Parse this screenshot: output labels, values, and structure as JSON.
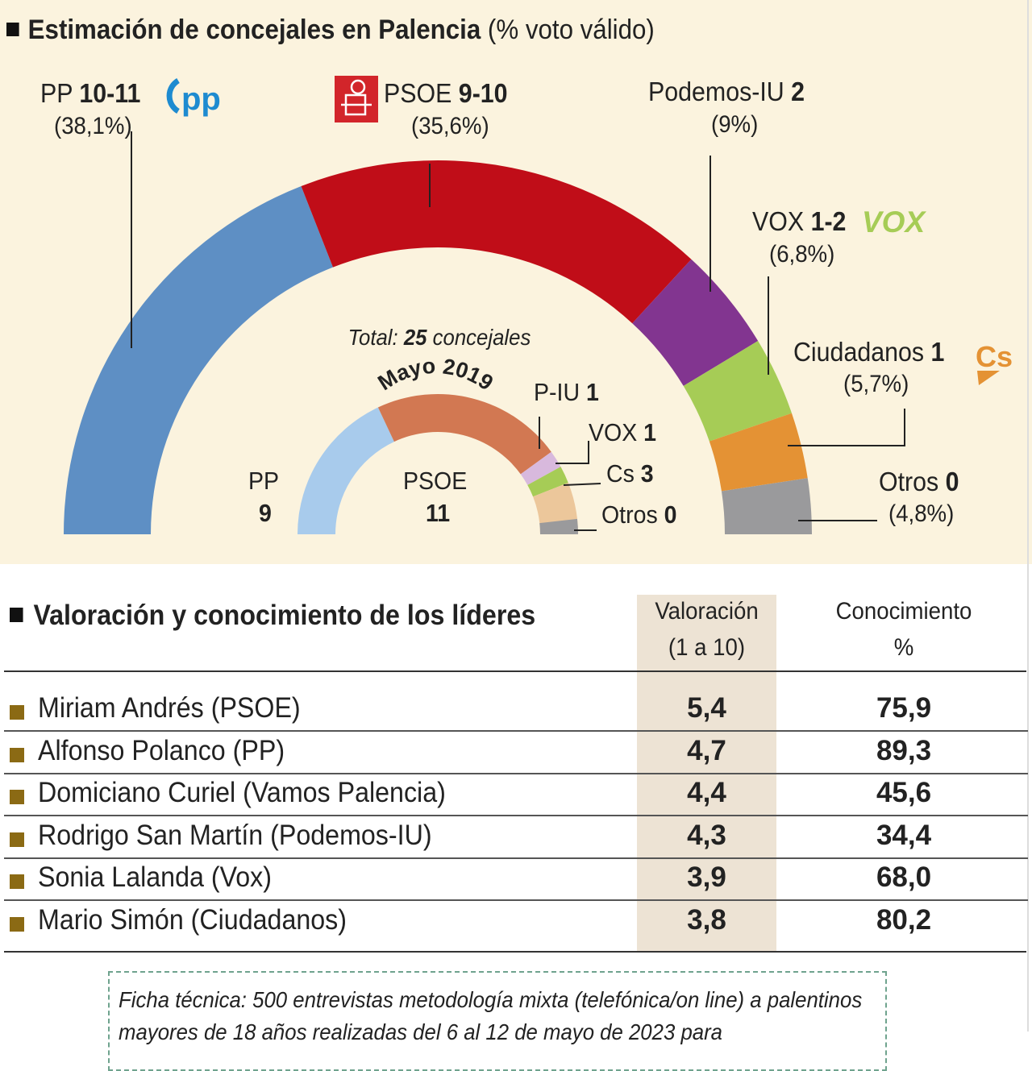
{
  "header": {
    "title": "Estimación de concejales en Palencia",
    "subtitle": "(% voto válido)"
  },
  "chart_data": [
    {
      "type": "pie",
      "title": "Estimación de concejales en Palencia",
      "subtitle": "(% voto válido)",
      "total_label": "Total:",
      "total_value": "25",
      "total_unit": "concejales",
      "series": [
        {
          "name": "PP",
          "seats": "10-11",
          "pct_label": "(38,1%)",
          "value": 38.1,
          "color": "#5e8fc4"
        },
        {
          "name": "PSOE",
          "seats": "9-10",
          "pct_label": "(35,6%)",
          "value": 35.6,
          "color": "#c00d18"
        },
        {
          "name": "Podemos-IU",
          "seats": "2",
          "pct_label": "(9%)",
          "value": 9.0,
          "color": "#823590"
        },
        {
          "name": "VOX",
          "seats": "1-2",
          "pct_label": "(6,8%)",
          "value": 6.8,
          "color": "#a6cc56"
        },
        {
          "name": "Ciudadanos",
          "seats": "1",
          "pct_label": "(5,7%)",
          "value": 5.7,
          "color": "#e49234"
        },
        {
          "name": "Otros",
          "seats": "0",
          "pct_label": "(4,8%)",
          "value": 4.8,
          "color": "#9a9a9c"
        }
      ]
    },
    {
      "type": "pie",
      "title": "Mayo 2019",
      "series": [
        {
          "name": "PP",
          "seats": "9",
          "value": 9,
          "color": "#a8cbec"
        },
        {
          "name": "PSOE",
          "seats": "11",
          "value": 11,
          "color": "#d27852"
        },
        {
          "name": "P-IU",
          "seats": "1",
          "value": 1,
          "color": "#d8b9dd"
        },
        {
          "name": "VOX",
          "seats": "1",
          "value": 1,
          "color": "#a6cc56"
        },
        {
          "name": "Cs",
          "seats": "3",
          "value": 3,
          "color": "#ecc79b"
        },
        {
          "name": "Otros",
          "seats": "0",
          "value": 0,
          "color": "#9a9a9c"
        }
      ]
    }
  ],
  "logos": {
    "pp": "pp",
    "vox": "VOX",
    "cs": "Cs",
    "psoe": "psoe-rose-icon"
  },
  "leaders": {
    "title": "Valoración y conocimiento de los líderes",
    "col_val": [
      "Valoración",
      "(1 a 10)"
    ],
    "col_con": [
      "Conocimiento",
      "%"
    ],
    "rows": [
      {
        "name": "Miriam Andrés (PSOE)",
        "val": "5,4",
        "con": "75,9"
      },
      {
        "name": "Alfonso Polanco (PP)",
        "val": "4,7",
        "con": "89,3"
      },
      {
        "name": "Domiciano Curiel (Vamos Palencia)",
        "val": "4,4",
        "con": "45,6"
      },
      {
        "name": "Rodrigo San Martín (Podemos-IU)",
        "val": "4,3",
        "con": "34,4"
      },
      {
        "name": "Sonia Lalanda (Vox)",
        "val": "3,9",
        "con": "68,0"
      },
      {
        "name": "Mario Simón (Ciudadanos)",
        "val": "3,8",
        "con": "80,2"
      }
    ]
  },
  "ficha": "Ficha técnica: 500 entrevistas metodología mixta (telefónica/on line) a palentinos mayores de 18 años realizadas del 6 al 12 de mayo de 2023 para"
}
